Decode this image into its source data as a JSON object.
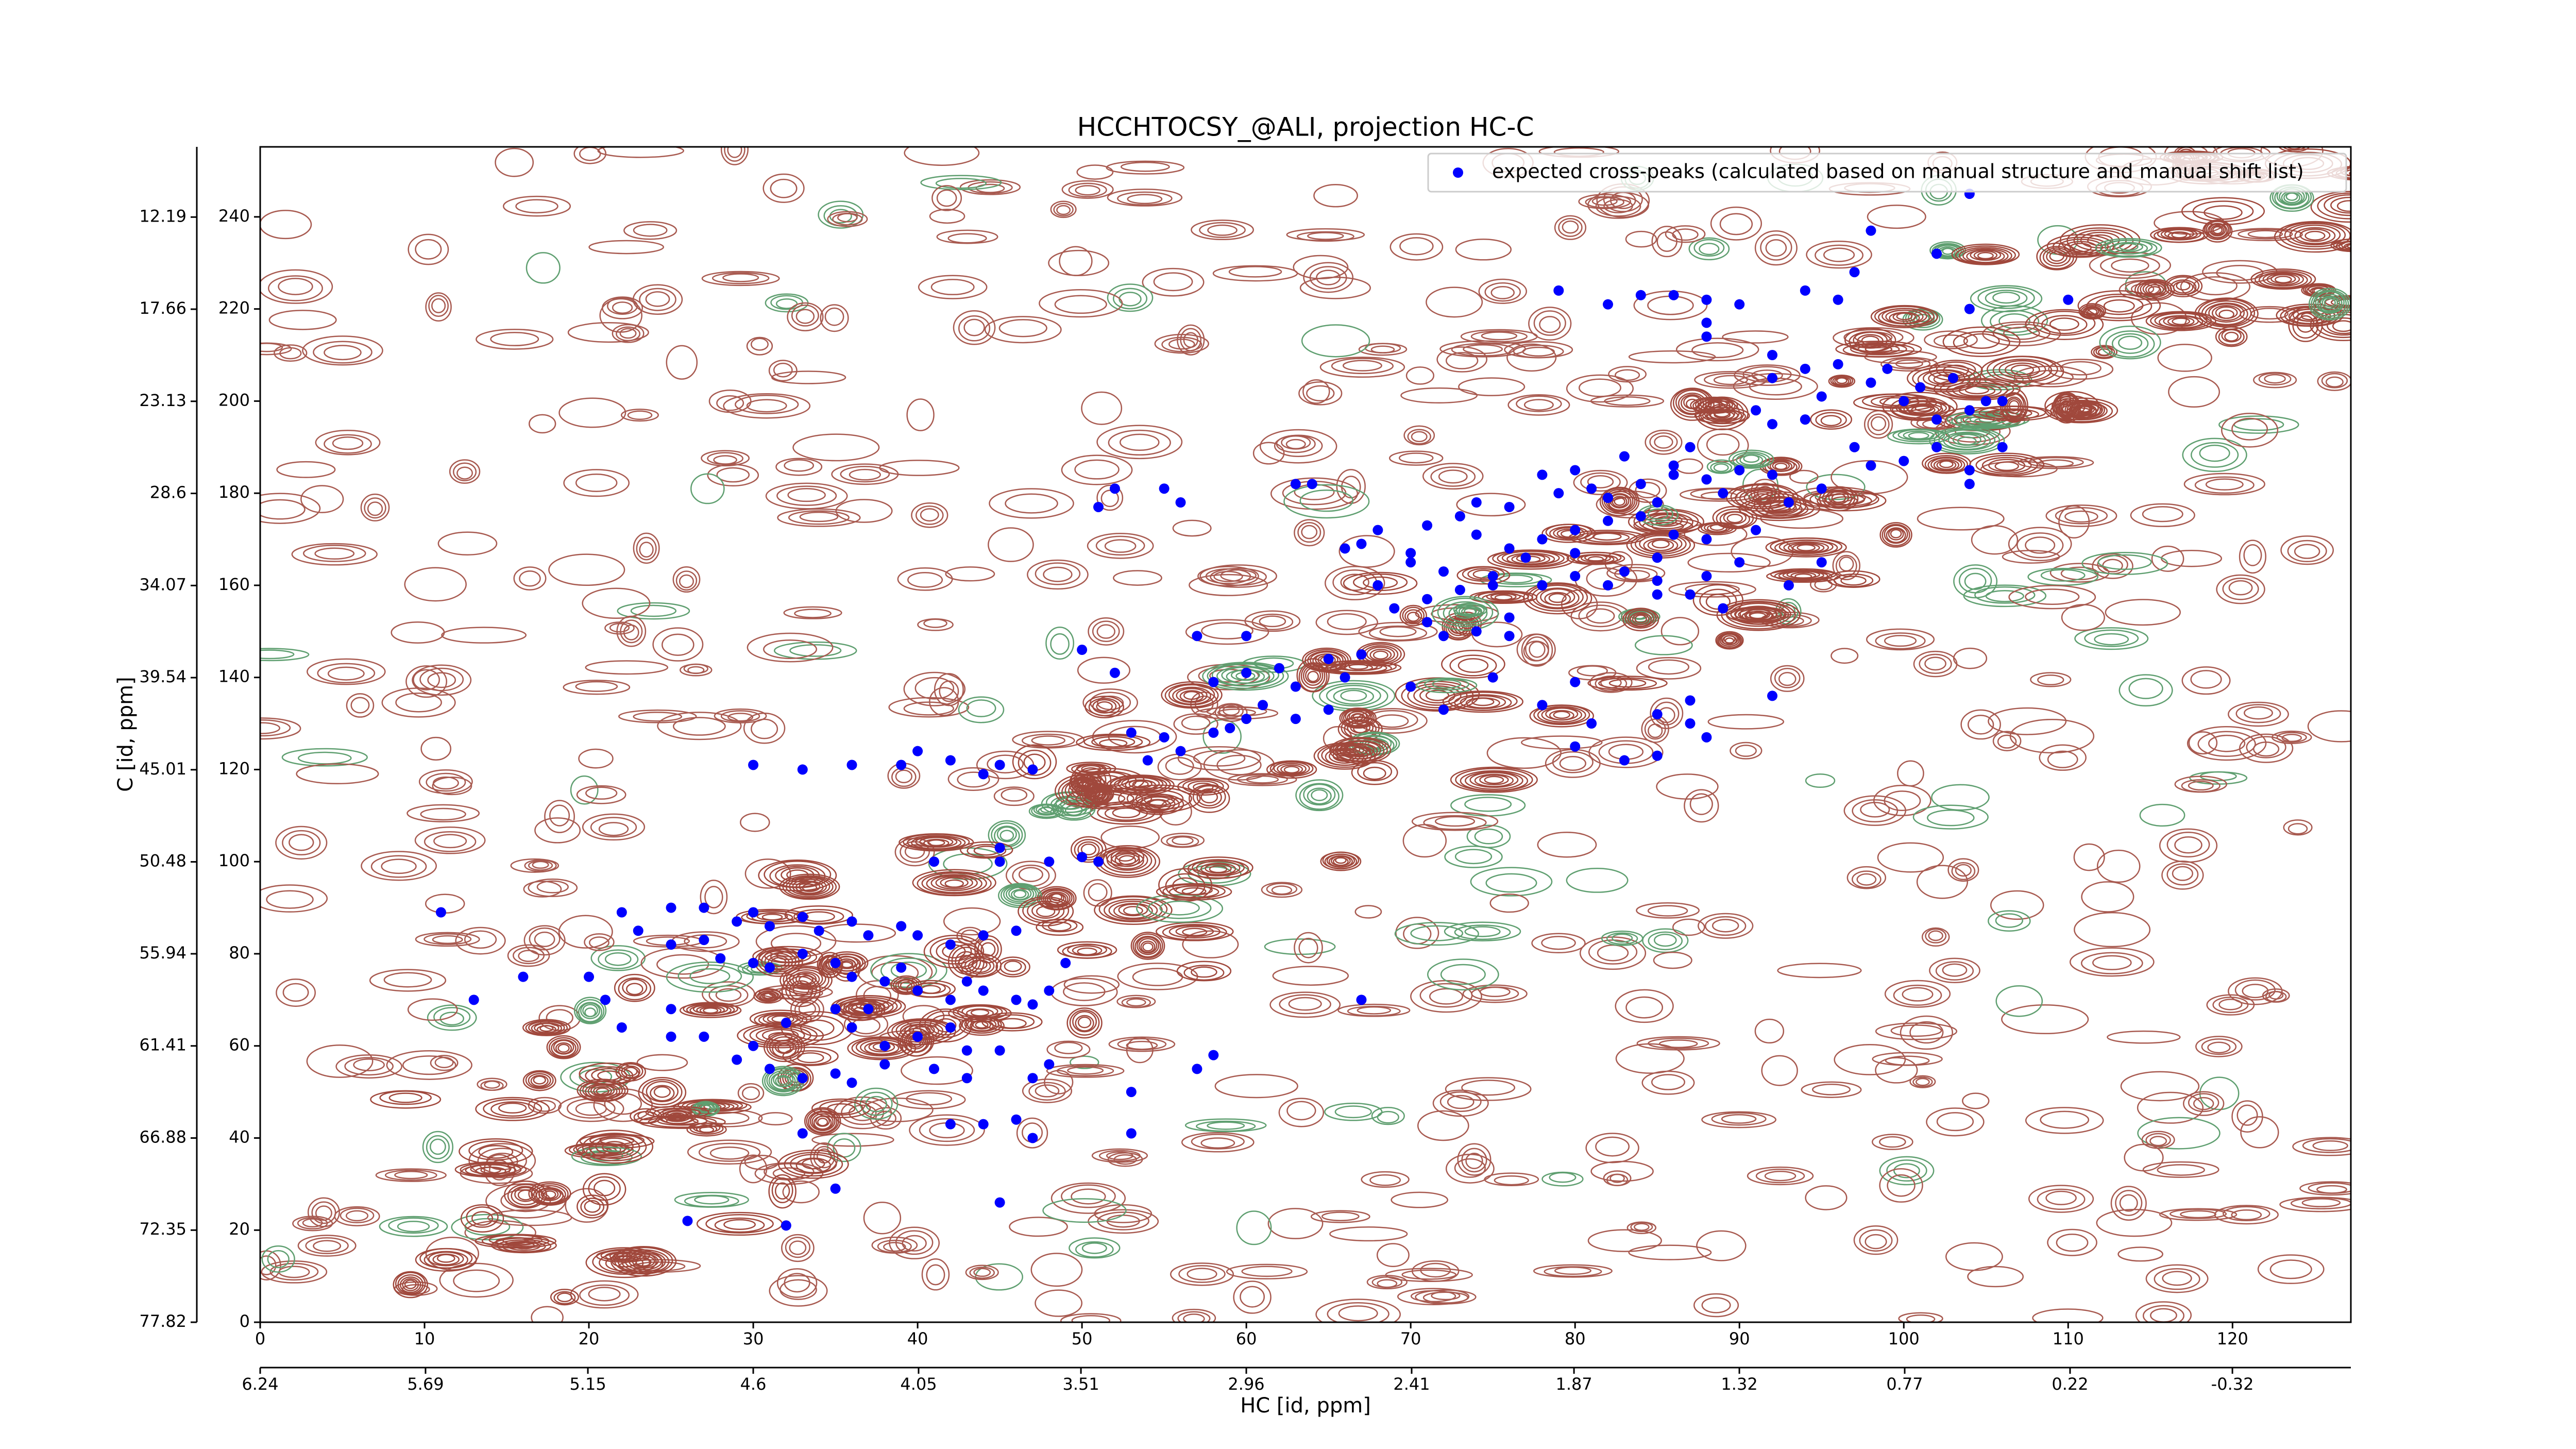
{
  "chart_data": {
    "type": "scatter",
    "title": "HCCHTOCSY_@ALI, projection HC-C",
    "xlabel": "HC [id, ppm]",
    "ylabel": "C [id, ppm]",
    "xlim": [
      0,
      127.2
    ],
    "xticks": [
      0,
      10,
      20,
      30,
      40,
      50,
      60,
      70,
      80,
      90,
      100,
      110,
      120
    ],
    "x2lim": [
      6.24,
      -0.714
    ],
    "x2ticks": [
      6.24,
      5.69,
      5.15,
      4.6,
      4.05,
      3.51,
      2.96,
      2.41,
      1.87,
      1.32,
      0.77,
      0.22,
      -0.32
    ],
    "ylim": [
      0,
      255.2
    ],
    "yticks": [
      0,
      20,
      40,
      60,
      80,
      100,
      120,
      140,
      160,
      180,
      200,
      220,
      240
    ],
    "y2lim": [
      77.82,
      8.02
    ],
    "y2ticks": [
      77.82,
      72.35,
      66.88,
      61.41,
      55.94,
      50.48,
      45.01,
      39.54,
      34.07,
      28.6,
      23.13,
      17.66,
      12.19
    ],
    "legend": "upper right",
    "x": [
      104,
      98,
      102,
      97,
      79,
      82,
      84,
      86,
      88,
      90,
      94,
      96,
      104,
      110,
      88,
      88,
      92,
      92,
      94,
      96,
      98,
      99,
      95,
      100,
      101,
      103,
      105,
      102,
      91,
      92,
      94,
      104,
      106,
      97,
      98,
      100,
      102,
      104,
      104,
      106,
      87,
      86,
      83,
      80,
      78,
      81,
      84,
      86,
      88,
      90,
      92,
      95,
      93,
      89,
      85,
      82,
      79,
      76,
      74,
      73,
      71,
      74,
      76,
      78,
      80,
      82,
      84,
      86,
      88,
      91,
      90,
      88,
      85,
      83,
      80,
      77,
      75,
      72,
      70,
      67,
      68,
      71,
      73,
      75,
      78,
      80,
      82,
      85,
      87,
      76,
      74,
      71,
      69,
      72,
      76,
      93,
      89,
      85,
      52,
      55,
      56,
      51,
      63,
      64,
      68,
      66,
      70,
      60,
      57,
      50,
      52,
      60,
      58,
      62,
      63,
      65,
      66,
      67,
      70,
      72,
      65,
      63,
      60,
      58,
      55,
      53,
      56,
      54,
      59,
      61,
      80,
      78,
      81,
      85,
      87,
      87,
      88,
      85,
      83,
      80,
      92,
      95,
      75,
      30,
      33,
      36,
      39,
      42,
      44,
      47,
      45,
      40,
      41,
      45,
      45,
      48,
      50,
      51,
      11,
      22,
      25,
      27,
      29,
      30,
      31,
      33,
      34,
      36,
      37,
      39,
      40,
      42,
      44,
      46,
      23,
      25,
      27,
      28,
      30,
      31,
      33,
      35,
      36,
      38,
      39,
      40,
      42,
      43,
      44,
      46,
      47,
      48,
      49,
      20,
      16,
      13,
      21,
      25,
      22,
      25,
      27,
      30,
      32,
      35,
      36,
      37,
      38,
      40,
      42,
      43,
      45,
      29,
      31,
      33,
      35,
      36,
      38,
      41,
      43,
      47,
      48,
      53,
      57,
      58,
      67,
      42,
      44,
      46,
      47,
      53,
      35,
      33,
      26,
      32,
      45
    ],
    "series": [
      {
        "name": "expected cross-peaks (calculated based on manual structure and manual shift list)",
        "color": "#0000ff",
        "values": [
          245,
          237,
          232,
          228,
          224,
          221,
          223,
          223,
          222,
          221,
          224,
          222,
          220,
          222,
          217,
          214,
          210,
          205,
          207,
          208,
          204,
          207,
          201,
          200,
          203,
          205,
          200,
          196,
          198,
          195,
          196,
          198,
          200,
          190,
          186,
          187,
          190,
          185,
          182,
          190,
          190,
          186,
          188,
          185,
          184,
          181,
          182,
          184,
          183,
          185,
          184,
          181,
          178,
          180,
          178,
          179,
          180,
          177,
          178,
          175,
          173,
          171,
          168,
          170,
          172,
          174,
          175,
          171,
          170,
          172,
          165,
          162,
          166,
          163,
          167,
          166,
          162,
          163,
          167,
          169,
          160,
          157,
          159,
          160,
          160,
          162,
          160,
          161,
          158,
          153,
          150,
          152,
          155,
          149,
          149,
          160,
          155,
          158,
          181,
          181,
          178,
          177,
          182,
          182,
          172,
          168,
          165,
          149,
          149,
          146,
          141,
          141,
          139,
          142,
          138,
          144,
          140,
          145,
          138,
          133,
          133,
          131,
          131,
          128,
          127,
          128,
          124,
          122,
          129,
          134,
          139,
          134,
          130,
          132,
          130,
          135,
          127,
          123,
          122,
          125,
          136,
          165,
          140,
          121,
          120,
          121,
          121,
          122,
          119,
          120,
          121,
          124,
          100,
          103,
          100,
          100,
          101,
          100,
          89,
          89,
          90,
          90,
          87,
          89,
          86,
          88,
          85,
          87,
          84,
          86,
          84,
          82,
          84,
          85,
          85,
          82,
          83,
          79,
          78,
          77,
          80,
          78,
          75,
          74,
          77,
          72,
          70,
          74,
          72,
          70,
          69,
          72,
          78,
          75,
          75,
          70,
          70,
          68,
          64,
          62,
          62,
          60,
          65,
          68,
          64,
          68,
          60,
          62,
          64,
          59,
          59,
          57,
          55,
          53,
          54,
          52,
          56,
          55,
          53,
          53,
          56,
          50,
          55,
          58,
          70,
          43,
          43,
          44,
          40,
          41,
          29,
          41,
          22,
          21,
          26
        ]
      }
    ]
  }
}
